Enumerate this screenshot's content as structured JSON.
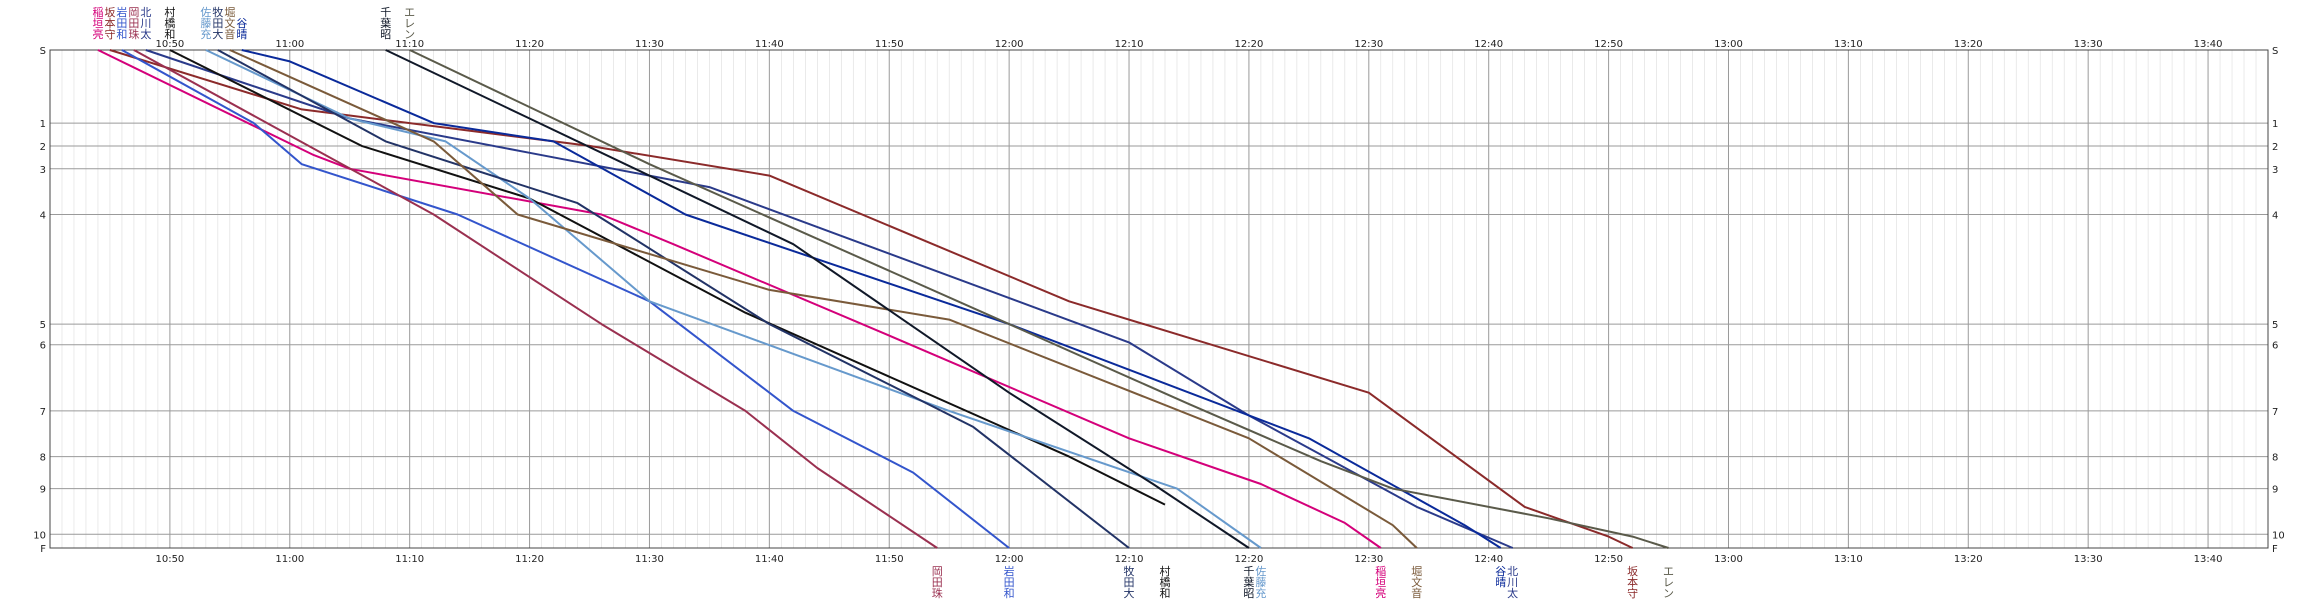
{
  "chart_data": {
    "type": "line",
    "title": "",
    "xlabel": "",
    "ylabel": "",
    "x_range": [
      "10:40",
      "13:45"
    ],
    "x_ticks": [
      "10:50",
      "11:00",
      "11:10",
      "11:20",
      "11:30",
      "11:40",
      "11:50",
      "12:00",
      "12:10",
      "12:20",
      "12:30",
      "12:40",
      "12:50",
      "13:00",
      "13:10",
      "13:20",
      "13:30",
      "13:40"
    ],
    "minor_grid_minutes": 1,
    "grid": true,
    "checkpoints": [
      "S",
      "1",
      "2",
      "3",
      "4",
      "5",
      "6",
      "7",
      "8",
      "9",
      "10",
      "F"
    ],
    "checkpoint_distance": {
      "S": 0,
      "1": 32,
      "2": 42,
      "3": 52,
      "4": 72,
      "5": 120,
      "6": 129,
      "7": 158,
      "8": 178,
      "9": 192,
      "10": 212,
      "F": 218
    },
    "series": [
      {
        "name": "稲垣亮",
        "color": "#d4007a",
        "start_label": "稲垣亮",
        "finish_label": "稲垣亮",
        "points": [
          [
            "10:44",
            0
          ],
          [
            "11:02",
            46
          ],
          [
            "11:05",
            52
          ],
          [
            "11:26",
            72
          ],
          [
            "11:32",
            85
          ],
          [
            "11:50",
            125
          ],
          [
            "12:10",
            170
          ],
          [
            "12:21",
            190
          ],
          [
            "12:28",
            207
          ],
          [
            "12:31",
            218
          ]
        ]
      },
      {
        "name": "坂本守",
        "color": "#8b2a2a",
        "start_label": "坂本守",
        "finish_label": "坂本守",
        "points": [
          [
            "10:45",
            0
          ],
          [
            "11:01",
            26
          ],
          [
            "11:25",
            42
          ],
          [
            "11:40",
            55
          ],
          [
            "12:05",
            110
          ],
          [
            "12:30",
            150
          ],
          [
            "12:43",
            200
          ],
          [
            "12:50",
            213
          ],
          [
            "12:52",
            218
          ]
        ]
      },
      {
        "name": "岩田和",
        "color": "#3355cc",
        "start_label": "岩田和",
        "finish_label": "岩田和",
        "points": [
          [
            "10:46",
            0
          ],
          [
            "10:57",
            32
          ],
          [
            "11:01",
            50
          ],
          [
            "11:14",
            72
          ],
          [
            "11:30",
            110
          ],
          [
            "11:42",
            158
          ],
          [
            "11:52",
            185
          ],
          [
            "12:00",
            218
          ]
        ]
      },
      {
        "name": "岡田珠",
        "color": "#9a3050",
        "start_label": "岡田珠",
        "finish_label": "岡田珠",
        "points": [
          [
            "10:47",
            0
          ],
          [
            "11:12",
            72
          ],
          [
            "11:26",
            120
          ],
          [
            "11:38",
            158
          ],
          [
            "11:44",
            183
          ],
          [
            "11:54",
            218
          ]
        ]
      },
      {
        "name": "北川太",
        "color": "#2a3a8a",
        "start_label": "北川太",
        "finish_label": "北川太",
        "points": [
          [
            "10:48",
            0
          ],
          [
            "11:05",
            30
          ],
          [
            "11:20",
            45
          ],
          [
            "11:35",
            60
          ],
          [
            "12:10",
            128
          ],
          [
            "12:20",
            160
          ],
          [
            "12:34",
            200
          ],
          [
            "12:42",
            218
          ]
        ]
      },
      {
        "name": "村橋和",
        "color": "#111111",
        "start_label": "村橋和",
        "finish_label": "村橋和",
        "points": [
          [
            "10:50",
            0
          ],
          [
            "11:06",
            42
          ],
          [
            "11:20",
            65
          ],
          [
            "11:38",
            115
          ],
          [
            "12:05",
            178
          ],
          [
            "12:13",
            199
          ]
        ]
      },
      {
        "name": "佐藤充",
        "color": "#6699cc",
        "start_label": "佐藤充",
        "finish_label": "佐藤充",
        "points": [
          [
            "10:53",
            0
          ],
          [
            "11:05",
            30
          ],
          [
            "11:13",
            40
          ],
          [
            "11:20",
            65
          ],
          [
            "11:30",
            110
          ],
          [
            "11:55",
            158
          ],
          [
            "12:14",
            192
          ],
          [
            "12:21",
            218
          ]
        ]
      },
      {
        "name": "牧田大",
        "color": "#223366",
        "start_label": "牧田大",
        "finish_label": "牧田大",
        "points": [
          [
            "10:54",
            0
          ],
          [
            "11:08",
            40
          ],
          [
            "11:24",
            67
          ],
          [
            "11:40",
            120
          ],
          [
            "11:57",
            165
          ],
          [
            "12:10",
            218
          ]
        ]
      },
      {
        "name": "堀文音",
        "color": "#7a5a3a",
        "start_label": "堀文音",
        "finish_label": "堀文音",
        "points": [
          [
            "10:55",
            0
          ],
          [
            "11:12",
            40
          ],
          [
            "11:19",
            72
          ],
          [
            "11:40",
            105
          ],
          [
            "11:55",
            118
          ],
          [
            "12:20",
            170
          ],
          [
            "12:32",
            208
          ],
          [
            "12:34",
            218
          ]
        ]
      },
      {
        "name": "谷晴",
        "color": "#0a2a9a",
        "start_label": "谷晴",
        "finish_label": "谷晴",
        "points": [
          [
            "10:56",
            0
          ],
          [
            "11:00",
            5
          ],
          [
            "11:12",
            32
          ],
          [
            "11:22",
            40
          ],
          [
            "11:33",
            72
          ],
          [
            "12:00",
            120
          ],
          [
            "12:25",
            170
          ],
          [
            "12:38",
            208
          ],
          [
            "12:41",
            218
          ]
        ]
      },
      {
        "name": "千葉昭",
        "color": "#101828",
        "start_label": "千葉昭",
        "finish_label": "千葉昭",
        "points": [
          [
            "11:08",
            0
          ],
          [
            "11:20",
            30
          ],
          [
            "11:42",
            85
          ],
          [
            "12:00",
            150
          ],
          [
            "12:12",
            190
          ],
          [
            "12:20",
            218
          ]
        ]
      },
      {
        "name": "エレン",
        "color": "#5a5a4a",
        "start_label": "エレン",
        "finish_label": "エレン",
        "points": [
          [
            "11:10",
            0
          ],
          [
            "11:30",
            50
          ],
          [
            "12:00",
            120
          ],
          [
            "12:15",
            155
          ],
          [
            "12:26",
            180
          ],
          [
            "12:32",
            192
          ],
          [
            "12:45",
            205
          ],
          [
            "12:52",
            213
          ],
          [
            "12:55",
            218
          ]
        ]
      }
    ]
  }
}
